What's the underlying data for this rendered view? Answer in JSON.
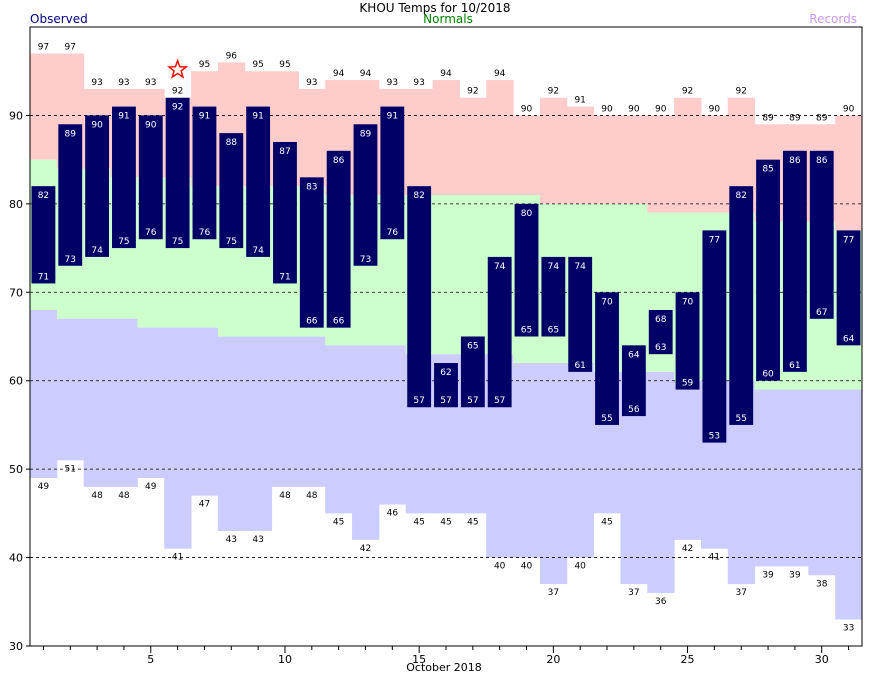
{
  "chart_data": {
    "type": "bar",
    "title": "KHOU Temps for 10/2018",
    "legend": {
      "observed": "Observed",
      "normals": "Normals",
      "records": "Records"
    },
    "xlabel": "October 2018",
    "ylabel": "",
    "xlim": [
      1,
      31
    ],
    "ylim": [
      30,
      100
    ],
    "y_ticks": [
      30,
      40,
      50,
      60,
      70,
      80,
      90
    ],
    "x_ticks": [
      5,
      10,
      15,
      20,
      25,
      30
    ],
    "gridlines": [
      40,
      50,
      60,
      70,
      80,
      90
    ],
    "days": [
      1,
      2,
      3,
      4,
      5,
      6,
      7,
      8,
      9,
      10,
      11,
      12,
      13,
      14,
      15,
      16,
      17,
      18,
      19,
      20,
      21,
      22,
      23,
      24,
      25,
      26,
      27,
      28,
      29,
      30,
      31
    ],
    "series": [
      {
        "name": "Observed",
        "key": "observed_high",
        "values": [
          82,
          89,
          90,
          91,
          90,
          92,
          91,
          88,
          91,
          87,
          83,
          86,
          89,
          91,
          82,
          62,
          65,
          74,
          80,
          74,
          74,
          70,
          64,
          68,
          70,
          77,
          82,
          85,
          86,
          86,
          77
        ]
      },
      {
        "name": "Observed",
        "key": "observed_low",
        "values": [
          71,
          73,
          74,
          75,
          76,
          75,
          76,
          75,
          74,
          71,
          66,
          66,
          73,
          76,
          57,
          57,
          57,
          57,
          65,
          65,
          61,
          55,
          56,
          63,
          59,
          53,
          55,
          60,
          61,
          67,
          64
        ]
      },
      {
        "name": "Normals",
        "key": "normal_high",
        "values": [
          85,
          84,
          84,
          83,
          83,
          83,
          82,
          82,
          82,
          82,
          82,
          81,
          81,
          81,
          81,
          81,
          81,
          81,
          81,
          80,
          80,
          80,
          80,
          79,
          79,
          79,
          79,
          78,
          78,
          78,
          77
        ]
      },
      {
        "name": "Normals",
        "key": "normal_low",
        "values": [
          68,
          67,
          67,
          67,
          66,
          66,
          66,
          65,
          65,
          65,
          65,
          64,
          64,
          64,
          63,
          63,
          63,
          63,
          62,
          62,
          62,
          61,
          61,
          61,
          60,
          60,
          60,
          59,
          59,
          59,
          59
        ]
      },
      {
        "name": "Records",
        "key": "record_high",
        "values": [
          97,
          97,
          93,
          93,
          93,
          92,
          95,
          96,
          95,
          95,
          93,
          94,
          94,
          93,
          93,
          94,
          92,
          94,
          90,
          92,
          91,
          90,
          90,
          90,
          92,
          90,
          92,
          89,
          89,
          89,
          90
        ]
      },
      {
        "name": "Records",
        "key": "record_low",
        "values": [
          49,
          51,
          48,
          48,
          49,
          41,
          47,
          43,
          43,
          48,
          48,
          45,
          42,
          46,
          45,
          45,
          45,
          40,
          40,
          37,
          40,
          45,
          37,
          36,
          42,
          41,
          37,
          39,
          39,
          38,
          33
        ]
      }
    ],
    "star_day": 6,
    "colors": {
      "observed": "#000066",
      "observed_legend": "#000080",
      "normals_band": "#ccffcc",
      "normals_legend": "#008000",
      "record_high_band": "#ffcccc",
      "record_low_band": "#ccccff",
      "records_legend": "#cc99ff",
      "star": "#ff0000"
    }
  }
}
